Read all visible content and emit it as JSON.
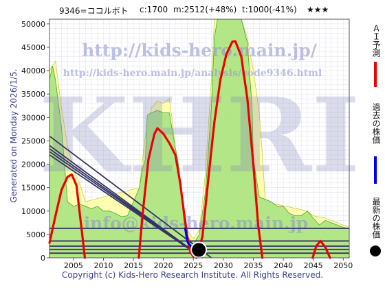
{
  "header": {
    "code_name": "9346=ココルボト",
    "current": "c:1700",
    "max": "m:2512(+48%)",
    "target": "t:1000(-41%)",
    "rating": "★★★"
  },
  "side_text": "Generated on Monday 2026/1/5.",
  "watermarks": {
    "url_big": "http://kids-hero.main.jp/",
    "url_small": "http://kids-hero.main.jp/analysis/code9346.html",
    "logo": "KHRI",
    "email": "info@kids-hero.main.jp"
  },
  "legend": {
    "ai_forecast": "ＡＩ予測",
    "past_price": "過去の株価",
    "latest_price": "最新の株価"
  },
  "footer": "Copyright (c) Kids-Hero Research Institute. All Rights Reserved.",
  "colors": {
    "ai_forecast": "#ee0000",
    "past_price": "#0000ee",
    "latest": "#000000",
    "trend": "#333366",
    "green_fill": "#99dd77",
    "yellow_fill": "#ffff99",
    "plot_bg": "#ffffff"
  },
  "chart_data": {
    "type": "line",
    "xlim": [
      2001,
      2051
    ],
    "ylim": [
      0,
      51000
    ],
    "x_ticks": [
      2005,
      2010,
      2015,
      2020,
      2025,
      2030,
      2035,
      2040,
      2045,
      2050
    ],
    "y_ticks": [
      0,
      5000,
      10000,
      15000,
      20000,
      25000,
      30000,
      35000,
      40000,
      45000,
      50000
    ],
    "ai_forecast_segments": [
      [
        [
          2001.0,
          3200
        ],
        [
          2002.0,
          9000
        ],
        [
          2003.0,
          14500
        ],
        [
          2004.0,
          17300
        ],
        [
          2004.7,
          17800
        ],
        [
          2005.5,
          15500
        ],
        [
          2006.5,
          4500
        ],
        [
          2006.9,
          0
        ]
      ],
      [
        [
          2015.9,
          0
        ],
        [
          2016.5,
          9000
        ],
        [
          2017.5,
          21000
        ],
        [
          2018.5,
          26500
        ],
        [
          2019.0,
          27700
        ],
        [
          2020.0,
          26500
        ],
        [
          2021.0,
          24500
        ],
        [
          2022.0,
          22000
        ],
        [
          2022.8,
          16000
        ],
        [
          2023.5,
          9000
        ],
        [
          2024.0,
          4500
        ],
        [
          2024.5,
          1200
        ],
        [
          2025.0,
          300
        ]
      ],
      [
        [
          2025.5,
          0
        ],
        [
          2026.5,
          4500
        ],
        [
          2027.5,
          17000
        ],
        [
          2028.5,
          29000
        ],
        [
          2029.5,
          38000
        ],
        [
          2030.5,
          43500
        ],
        [
          2031.5,
          46200
        ],
        [
          2032.0,
          46300
        ],
        [
          2033.0,
          43000
        ],
        [
          2034.0,
          34000
        ],
        [
          2035.0,
          20000
        ],
        [
          2035.8,
          7000
        ],
        [
          2036.5,
          0
        ]
      ],
      [
        [
          2044.9,
          0
        ],
        [
          2045.5,
          2500
        ],
        [
          2046.2,
          3600
        ],
        [
          2047.0,
          2300
        ],
        [
          2047.8,
          0
        ]
      ]
    ],
    "past_price": [
      [
        2023.6,
        6500
      ],
      [
        2023.8,
        5000
      ],
      [
        2024.0,
        3500
      ],
      [
        2024.2,
        3000
      ],
      [
        2024.4,
        2800
      ],
      [
        2024.6,
        2400
      ],
      [
        2024.8,
        2200
      ],
      [
        2025.0,
        2000
      ],
      [
        2025.3,
        1800
      ],
      [
        2025.6,
        1700
      ]
    ],
    "latest_point": [
      2025.9,
      1700
    ],
    "trend_lines": [
      [
        [
          2001,
          26000
        ],
        [
          2028,
          0
        ]
      ],
      [
        [
          2001,
          24000
        ],
        [
          2026.5,
          0
        ]
      ],
      [
        [
          2001,
          23300
        ],
        [
          2026.5,
          0
        ]
      ],
      [
        [
          2001,
          22700
        ],
        [
          2026.5,
          0
        ]
      ],
      [
        [
          2001,
          22000
        ],
        [
          2026.5,
          0
        ]
      ]
    ],
    "support_levels": [
      6300,
      3600,
      2500,
      1800,
      1000
    ],
    "green_area": [
      [
        2001,
        38000
      ],
      [
        2001.5,
        41000
      ],
      [
        2002.0,
        38000
      ],
      [
        2003.0,
        28000
      ],
      [
        2004.0,
        12000
      ],
      [
        2005.0,
        11000
      ],
      [
        2006.0,
        11500
      ],
      [
        2007.0,
        11000
      ],
      [
        2008.0,
        10500
      ],
      [
        2009.0,
        11000
      ],
      [
        2010.0,
        10000
      ],
      [
        2011.0,
        10000
      ],
      [
        2012.0,
        9500
      ],
      [
        2013.0,
        8800
      ],
      [
        2014.0,
        9000
      ],
      [
        2015.0,
        12000
      ],
      [
        2016.0,
        15000
      ],
      [
        2016.5,
        19000
      ],
      [
        2017.0,
        21000
      ],
      [
        2017.3,
        30500
      ],
      [
        2018.0,
        31000
      ],
      [
        2019.0,
        31500
      ],
      [
        2020.0,
        31000
      ],
      [
        2021.0,
        31000
      ],
      [
        2021.5,
        27000
      ],
      [
        2022.5,
        20000
      ],
      [
        2023.0,
        13000
      ],
      [
        2023.5,
        7000
      ],
      [
        2024.0,
        4500
      ],
      [
        2025.0,
        3000
      ],
      [
        2026.0,
        5000
      ],
      [
        2027.0,
        14000
      ],
      [
        2028.0,
        32000
      ],
      [
        2028.5,
        47000
      ],
      [
        2029.0,
        51000
      ],
      [
        2033.0,
        51000
      ],
      [
        2034.0,
        46000
      ],
      [
        2034.8,
        32000
      ],
      [
        2035.0,
        21000
      ],
      [
        2036.0,
        13000
      ],
      [
        2037.0,
        12500
      ],
      [
        2038.0,
        12000
      ],
      [
        2039.0,
        11000
      ],
      [
        2040.0,
        11000
      ],
      [
        2041.0,
        9500
      ],
      [
        2042.0,
        9000
      ],
      [
        2043.0,
        9000
      ],
      [
        2044.0,
        10000
      ],
      [
        2045.0,
        8500
      ],
      [
        2046.0,
        7000
      ],
      [
        2047.0,
        8000
      ],
      [
        2048.0,
        7500
      ],
      [
        2049.0,
        7000
      ],
      [
        2050.0,
        6500
      ],
      [
        2051.0,
        6300
      ]
    ],
    "yellow_area": [
      [
        2001,
        40000
      ],
      [
        2002.0,
        42000
      ],
      [
        2003.0,
        32000
      ],
      [
        2004.0,
        24000
      ],
      [
        2005.0,
        19000
      ],
      [
        2006.0,
        16000
      ],
      [
        2007.0,
        12000
      ],
      [
        2016.0,
        15000
      ],
      [
        2016.5,
        21000
      ],
      [
        2017.0,
        26000
      ],
      [
        2018.0,
        32000
      ],
      [
        2019.0,
        33500
      ],
      [
        2020.0,
        33000
      ],
      [
        2021.0,
        34000
      ],
      [
        2021.5,
        29000
      ],
      [
        2022.0,
        23000
      ],
      [
        2023.0,
        14000
      ],
      [
        2024.0,
        6000
      ],
      [
        2025.0,
        4000
      ],
      [
        2026.0,
        6000
      ],
      [
        2027.0,
        18000
      ],
      [
        2028.0,
        38000
      ],
      [
        2028.5,
        51000
      ],
      [
        2033.0,
        51000
      ],
      [
        2034.0,
        47000
      ],
      [
        2035.0,
        40000
      ],
      [
        2036.0,
        31000
      ],
      [
        2036.5,
        22000
      ],
      [
        2037.0,
        12000
      ],
      [
        2044.0,
        10000
      ],
      [
        2045.0,
        9000
      ],
      [
        2047.0,
        8500
      ],
      [
        2051.0,
        6500
      ]
    ]
  }
}
